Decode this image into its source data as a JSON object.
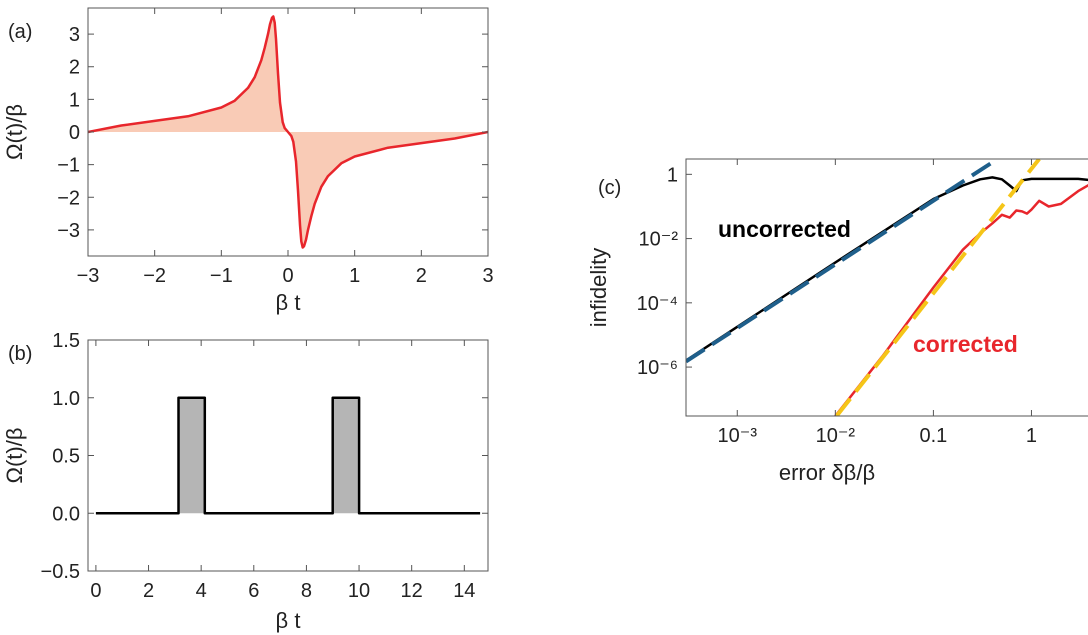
{
  "chart_data": [
    {
      "panel_label": "(a)",
      "type": "area",
      "xlabel": "β t",
      "ylabel": "Ω(t)/β",
      "xlim": [
        -3,
        3
      ],
      "ylim": [
        -3.8,
        3.8
      ],
      "xticks": [
        "−3",
        "−2",
        "−1",
        "0",
        "1",
        "2",
        "3"
      ],
      "yticks": [
        "−3",
        "−2",
        "−1",
        "0",
        "1",
        "2",
        "3"
      ],
      "series": [
        {
          "x": [
            -3,
            -2.5,
            -2,
            -1.5,
            -1,
            -0.8,
            -0.6,
            -0.5,
            -0.4,
            -0.35,
            -0.3,
            -0.27,
            -0.24,
            -0.22,
            -0.2,
            -0.18,
            -0.15,
            -0.12,
            -0.08,
            -0.05,
            0,
            0.05,
            0.08,
            0.12,
            0.15,
            0.18,
            0.2,
            0.22,
            0.24,
            0.27,
            0.3,
            0.35,
            0.4,
            0.5,
            0.6,
            0.8,
            1,
            1.5,
            2,
            2.5,
            3
          ],
          "y": [
            0,
            0.2,
            0.34,
            0.48,
            0.75,
            0.96,
            1.35,
            1.68,
            2.2,
            2.58,
            3.0,
            3.3,
            3.5,
            3.54,
            3.35,
            2.85,
            1.8,
            0.9,
            0.3,
            0.12,
            0,
            -0.12,
            -0.3,
            -0.9,
            -1.8,
            -2.85,
            -3.35,
            -3.54,
            -3.5,
            -3.3,
            -3.0,
            -2.58,
            -2.2,
            -1.68,
            -1.35,
            -0.96,
            -0.75,
            -0.48,
            -0.34,
            -0.2,
            0
          ],
          "color": "#e8262c",
          "fill": "#f9cbb6"
        }
      ]
    },
    {
      "panel_label": "(b)",
      "type": "area",
      "xlabel": "β t",
      "ylabel": "Ω(t)/β",
      "xlim": [
        -0.3,
        14.9
      ],
      "ylim": [
        -0.5,
        1.5
      ],
      "xticks": [
        "0",
        "2",
        "4",
        "6",
        "8",
        "10",
        "12",
        "14"
      ],
      "yticks": [
        "−0.5",
        "0.0",
        "0.5",
        "1.0",
        "1.5"
      ],
      "series": [
        {
          "x": [
            0,
            3.14,
            3.14,
            4.14,
            4.14,
            9.0,
            9.0,
            10.0,
            10.0,
            14.6
          ],
          "y": [
            0,
            0,
            1,
            1,
            0,
            0,
            1,
            1,
            0,
            0
          ],
          "color": "#000000",
          "fill": "#b5b5b5"
        }
      ]
    },
    {
      "panel_label": "(c)",
      "type": "line",
      "xlabel": "error δβ/β",
      "ylabel": "infidelity",
      "xscale": "log",
      "yscale": "log",
      "xlim": [
        0.0003,
        5
      ],
      "ylim": [
        3e-08,
        3
      ],
      "xticks": [
        "10⁻³",
        "10⁻²",
        "0.1",
        "1"
      ],
      "yticks": [
        "1",
        "10⁻²",
        "10⁻⁴",
        "10⁻⁶"
      ],
      "annotations": [
        "uncorrected",
        "corrected"
      ],
      "series": [
        {
          "x": [
            0.0003,
            0.001,
            0.01,
            0.1,
            0.2,
            0.3,
            0.4,
            0.5,
            0.6,
            0.7,
            0.8,
            1.0,
            1.5,
            2,
            3,
            4,
            5
          ],
          "y": [
            1.6e-06,
            1.8e-05,
            0.0018,
            0.17,
            0.45,
            0.7,
            0.8,
            0.7,
            0.45,
            0.3,
            0.65,
            0.72,
            0.72,
            0.72,
            0.72,
            0.66,
            0.65
          ],
          "color": "#000000",
          "style": "solid"
        },
        {
          "x": [
            0.01,
            0.03,
            0.1,
            0.2,
            0.3,
            0.4,
            0.5,
            0.6,
            0.7,
            0.8,
            0.9,
            1.0,
            1.2,
            1.5,
            2,
            3,
            4,
            5
          ],
          "y": [
            3e-08,
            2.1e-06,
            0.0003,
            0.0045,
            0.0145,
            0.03,
            0.055,
            0.045,
            0.075,
            0.07,
            0.06,
            0.08,
            0.15,
            0.1,
            0.12,
            0.3,
            0.5,
            0.75
          ],
          "color": "#e8262c",
          "style": "solid"
        },
        {
          "x": [
            0.0003,
            0.45
          ],
          "y": [
            1.5e-06,
            3.0
          ],
          "color": "#1f5f8b",
          "style": "dashed"
        },
        {
          "x": [
            0.0103,
            1.2
          ],
          "y": [
            3e-08,
            3.0
          ],
          "color": "#f5c518",
          "style": "dashed"
        }
      ]
    }
  ]
}
